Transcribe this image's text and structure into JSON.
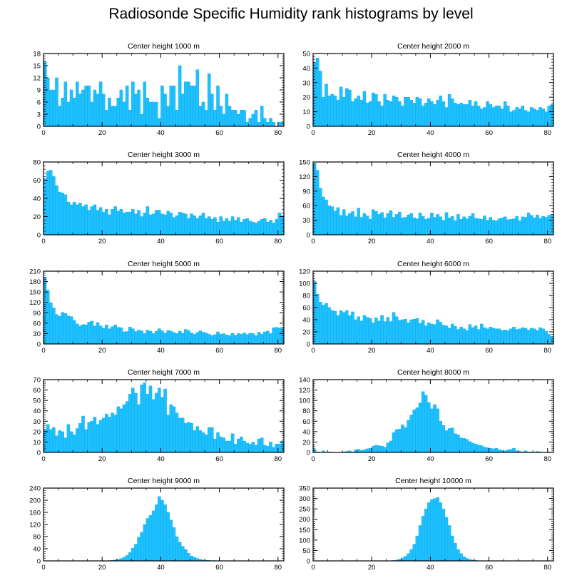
{
  "title": "Radiosonde Specific Humidity rank histograms by level",
  "colors": {
    "bar": "#1ec0ff",
    "bar_edge": "#0aa6e0",
    "axis": "#000000"
  },
  "chart_data": [
    {
      "type": "bar",
      "title": "Center height 1000 m",
      "xlim": [
        0,
        82
      ],
      "ylim": [
        0,
        18
      ],
      "xticks": [
        0,
        20,
        40,
        60,
        80
      ],
      "yticks": [
        0,
        3,
        6,
        9,
        12,
        15,
        18
      ],
      "values": [
        16,
        12,
        9,
        9,
        12,
        5,
        7,
        11,
        6,
        9,
        7,
        11,
        8,
        9,
        10,
        10,
        6,
        9,
        8,
        11,
        8,
        4,
        7,
        5,
        5,
        7,
        9,
        6,
        10,
        4,
        11,
        8,
        9,
        3,
        11,
        7,
        6,
        6,
        6,
        2,
        10,
        8,
        5,
        10,
        10,
        4,
        15,
        8,
        11,
        11,
        10,
        10,
        14,
        5,
        6,
        4,
        13,
        8,
        4,
        10,
        5,
        3,
        8,
        5,
        4,
        4,
        3,
        4,
        4,
        1,
        2,
        3,
        4,
        1,
        5,
        2,
        1,
        2,
        1,
        0,
        1,
        1
      ]
    },
    {
      "type": "bar",
      "title": "Center height 2000 m",
      "xlim": [
        0,
        82
      ],
      "ylim": [
        0,
        50
      ],
      "xticks": [
        0,
        20,
        40,
        60,
        80
      ],
      "yticks": [
        0,
        10,
        20,
        30,
        40,
        50
      ],
      "values": [
        44,
        47,
        38,
        20,
        29,
        21,
        22,
        21,
        18,
        27,
        20,
        26,
        25,
        17,
        19,
        21,
        18,
        24,
        16,
        17,
        23,
        22,
        17,
        14,
        22,
        18,
        17,
        21,
        20,
        17,
        14,
        20,
        20,
        18,
        16,
        20,
        19,
        14,
        16,
        19,
        17,
        15,
        18,
        21,
        17,
        13,
        22,
        19,
        16,
        15,
        16,
        15,
        15,
        18,
        14,
        17,
        14,
        12,
        13,
        17,
        15,
        13,
        14,
        14,
        12,
        17,
        14,
        10,
        11,
        13,
        12,
        14,
        11,
        10,
        13,
        12,
        11,
        13,
        12,
        10,
        14,
        15
      ]
    },
    {
      "type": "bar",
      "title": "Center height 3000 m",
      "xlim": [
        0,
        82
      ],
      "ylim": [
        0,
        80
      ],
      "xticks": [
        0,
        20,
        40,
        60,
        80
      ],
      "yticks": [
        0,
        20,
        40,
        60,
        80
      ],
      "values": [
        62,
        70,
        71,
        64,
        54,
        47,
        46,
        44,
        36,
        33,
        36,
        33,
        35,
        31,
        33,
        27,
        31,
        33,
        27,
        30,
        25,
        28,
        22,
        28,
        31,
        26,
        28,
        24,
        25,
        25,
        28,
        23,
        27,
        20,
        24,
        31,
        22,
        23,
        27,
        27,
        23,
        22,
        26,
        24,
        19,
        21,
        25,
        24,
        23,
        18,
        23,
        21,
        18,
        21,
        24,
        18,
        20,
        17,
        19,
        14,
        20,
        15,
        18,
        15,
        20,
        16,
        19,
        14,
        17,
        18,
        15,
        14,
        13,
        15,
        17,
        18,
        14,
        16,
        13,
        17,
        24,
        21
      ]
    },
    {
      "type": "bar",
      "title": "Center height 4000 m",
      "xlim": [
        0,
        82
      ],
      "ylim": [
        0,
        150
      ],
      "xticks": [
        0,
        20,
        40,
        60,
        80
      ],
      "yticks": [
        0,
        30,
        60,
        90,
        120,
        150
      ],
      "values": [
        148,
        133,
        96,
        78,
        72,
        60,
        58,
        49,
        56,
        40,
        52,
        39,
        44,
        48,
        37,
        55,
        36,
        44,
        39,
        32,
        52,
        48,
        42,
        46,
        35,
        44,
        50,
        36,
        42,
        47,
        35,
        36,
        41,
        44,
        35,
        33,
        45,
        38,
        32,
        34,
        45,
        36,
        42,
        37,
        30,
        46,
        35,
        38,
        29,
        42,
        32,
        37,
        33,
        38,
        44,
        34,
        33,
        32,
        39,
        30,
        36,
        30,
        29,
        33,
        35,
        37,
        31,
        32,
        33,
        38,
        29,
        37,
        36,
        45,
        40,
        35,
        41,
        34,
        38,
        36,
        40,
        42
      ]
    },
    {
      "type": "bar",
      "title": "Center height 5000 m",
      "xlim": [
        0,
        82
      ],
      "ylim": [
        0,
        210
      ],
      "xticks": [
        0,
        20,
        40,
        60,
        80
      ],
      "yticks": [
        0,
        30,
        60,
        90,
        120,
        150,
        180,
        210
      ],
      "values": [
        193,
        155,
        119,
        104,
        85,
        80,
        91,
        88,
        81,
        79,
        68,
        58,
        52,
        56,
        55,
        63,
        66,
        52,
        62,
        52,
        45,
        55,
        44,
        50,
        55,
        48,
        47,
        35,
        36,
        49,
        44,
        36,
        40,
        38,
        30,
        40,
        37,
        30,
        37,
        44,
        38,
        31,
        39,
        37,
        33,
        30,
        37,
        31,
        42,
        39,
        32,
        28,
        33,
        38,
        34,
        32,
        28,
        24,
        27,
        35,
        28,
        30,
        26,
        24,
        31,
        25,
        30,
        28,
        32,
        27,
        31,
        30,
        24,
        34,
        28,
        35,
        37,
        30,
        47,
        48,
        46,
        48
      ]
    },
    {
      "type": "bar",
      "title": "Center height 6000 m",
      "xlim": [
        0,
        82
      ],
      "ylim": [
        0,
        120
      ],
      "xticks": [
        0,
        20,
        40,
        60,
        80
      ],
      "yticks": [
        0,
        20,
        40,
        60,
        80,
        100,
        120
      ],
      "values": [
        103,
        82,
        69,
        64,
        67,
        60,
        55,
        54,
        47,
        55,
        52,
        55,
        47,
        53,
        40,
        45,
        38,
        47,
        44,
        42,
        35,
        43,
        38,
        47,
        37,
        44,
        37,
        52,
        45,
        39,
        40,
        41,
        35,
        40,
        41,
        42,
        34,
        39,
        30,
        35,
        33,
        32,
        40,
        36,
        31,
        30,
        26,
        33,
        29,
        24,
        28,
        25,
        22,
        32,
        27,
        30,
        24,
        33,
        27,
        25,
        28,
        26,
        25,
        25,
        22,
        23,
        22,
        25,
        28,
        24,
        25,
        27,
        26,
        23,
        26,
        25,
        22,
        27,
        25,
        21,
        16,
        12
      ]
    },
    {
      "type": "bar",
      "title": "Center height 7000 m",
      "xlim": [
        0,
        82
      ],
      "ylim": [
        0,
        70
      ],
      "xticks": [
        0,
        20,
        40,
        60,
        80
      ],
      "yticks": [
        0,
        10,
        20,
        30,
        40,
        50,
        60,
        70
      ],
      "values": [
        22,
        27,
        22,
        24,
        16,
        21,
        20,
        14,
        27,
        20,
        17,
        23,
        28,
        35,
        22,
        29,
        30,
        34,
        27,
        31,
        33,
        37,
        34,
        38,
        36,
        44,
        42,
        46,
        49,
        56,
        62,
        57,
        46,
        65,
        67,
        56,
        64,
        51,
        57,
        62,
        53,
        61,
        36,
        46,
        44,
        38,
        33,
        33,
        28,
        29,
        28,
        21,
        25,
        21,
        19,
        17,
        24,
        24,
        13,
        19,
        15,
        14,
        11,
        11,
        18,
        8,
        13,
        15,
        11,
        9,
        8,
        10,
        7,
        13,
        14,
        7,
        6,
        10,
        5,
        8,
        8,
        11
      ]
    },
    {
      "type": "bar",
      "title": "Center height 8000 m",
      "xlim": [
        0,
        82
      ],
      "ylim": [
        0,
        140
      ],
      "xticks": [
        0,
        20,
        40,
        60,
        80
      ],
      "yticks": [
        0,
        20,
        40,
        60,
        80,
        100,
        120,
        140
      ],
      "values": [
        6,
        1,
        0,
        3,
        0,
        1,
        0,
        0,
        0,
        0,
        1,
        2,
        3,
        1,
        5,
        6,
        4,
        5,
        7,
        8,
        12,
        14,
        13,
        12,
        10,
        18,
        22,
        38,
        44,
        45,
        53,
        48,
        62,
        72,
        82,
        86,
        95,
        117,
        110,
        96,
        84,
        92,
        84,
        60,
        52,
        42,
        46,
        47,
        36,
        34,
        28,
        27,
        25,
        21,
        18,
        16,
        14,
        13,
        10,
        9,
        8,
        7,
        8,
        5,
        4,
        3,
        5,
        6,
        8,
        3,
        2,
        1,
        3,
        1,
        1,
        0,
        2,
        1,
        0,
        0,
        1,
        0
      ]
    },
    {
      "type": "bar",
      "title": "Center height 9000 m",
      "xlim": [
        0,
        82
      ],
      "ylim": [
        0,
        240
      ],
      "xticks": [
        0,
        20,
        40,
        60,
        80
      ],
      "yticks": [
        0,
        40,
        80,
        120,
        160,
        200,
        240
      ],
      "values": [
        0,
        0,
        0,
        0,
        0,
        0,
        0,
        0,
        0,
        0,
        0,
        0,
        0,
        0,
        0,
        0,
        0,
        0,
        0,
        0,
        0,
        0,
        1,
        2,
        3,
        5,
        8,
        12,
        18,
        28,
        42,
        55,
        78,
        95,
        120,
        140,
        150,
        165,
        185,
        212,
        200,
        185,
        160,
        135,
        110,
        80,
        62,
        48,
        38,
        25,
        16,
        12,
        8,
        5,
        3,
        2,
        2,
        1,
        1,
        0,
        1,
        0,
        0,
        0,
        0,
        0,
        0,
        0,
        0,
        0,
        0,
        0,
        0,
        0,
        0,
        0,
        0,
        0,
        0,
        0,
        0,
        0
      ]
    },
    {
      "type": "bar",
      "title": "Center height 10000 m",
      "xlim": [
        0,
        82
      ],
      "ylim": [
        0,
        350
      ],
      "xticks": [
        0,
        20,
        40,
        60,
        80
      ],
      "yticks": [
        0,
        50,
        100,
        150,
        200,
        250,
        300,
        350
      ],
      "values": [
        0,
        0,
        0,
        0,
        0,
        0,
        0,
        0,
        0,
        0,
        0,
        0,
        0,
        0,
        0,
        0,
        0,
        0,
        0,
        0,
        0,
        0,
        0,
        0,
        0,
        0,
        1,
        2,
        4,
        8,
        14,
        22,
        35,
        55,
        80,
        120,
        170,
        215,
        250,
        280,
        295,
        300,
        305,
        280,
        250,
        210,
        170,
        120,
        85,
        55,
        35,
        20,
        12,
        7,
        4,
        2,
        1,
        1,
        0,
        0,
        0,
        0,
        0,
        0,
        0,
        0,
        0,
        0,
        0,
        0,
        0,
        0,
        0,
        0,
        0,
        0,
        0,
        0,
        0,
        0,
        0,
        0
      ]
    }
  ]
}
